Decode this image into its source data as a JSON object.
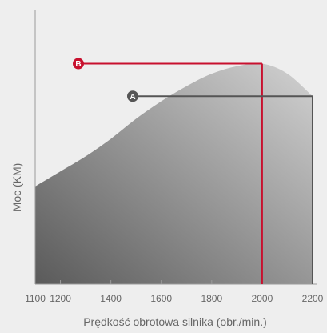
{
  "chart_data": {
    "type": "area",
    "xlabel": "Prędkość obrotowa silnika (obr./min.)",
    "ylabel": "Moc (KM)",
    "xlim": [
      1100,
      2200
    ],
    "x_ticks": [
      1100,
      1200,
      1400,
      1600,
      1800,
      2000,
      2200
    ],
    "ylim": [
      0,
      100
    ],
    "grid": false,
    "curve": {
      "x": [
        1100,
        1200,
        1300,
        1400,
        1500,
        1600,
        1700,
        1800,
        1900,
        2000,
        2100,
        2200
      ],
      "y": [
        39,
        45,
        51,
        58,
        66,
        73,
        79,
        84,
        87,
        88,
        84,
        75
      ]
    },
    "markers": [
      {
        "label": "B",
        "x": 2000,
        "y": 88,
        "color": "#c8102e"
      },
      {
        "label": "A",
        "x": 2200,
        "y": 75,
        "color": "#555555"
      }
    ],
    "colors": {
      "area_dark": "#5a5a5a",
      "area_light": "#d2d2d2",
      "axis": "#9a9a9a"
    }
  }
}
